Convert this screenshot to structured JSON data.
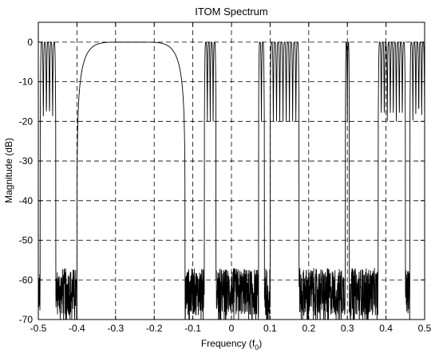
{
  "chart_data": {
    "type": "line",
    "title": "ITOM Spectrum",
    "xlabel_main": "Frequency (f",
    "xlabel_sub": "0",
    "xlabel_close": ")",
    "ylabel": "Magnitude (dB)",
    "xlim": [
      -0.5,
      0.5
    ],
    "ylim": [
      -70,
      5
    ],
    "grid": true,
    "grid_style": "dashed",
    "line_color": "#000000",
    "x_ticks": [
      -0.5,
      -0.4,
      -0.3,
      -0.2,
      -0.1,
      0,
      0.1,
      0.2,
      0.3,
      0.4,
      0.5
    ],
    "x_tick_labels": [
      "-0.5",
      "-0.4",
      "-0.3",
      "-0.2",
      "-0.1",
      "0",
      "0.1",
      "0.2",
      "0.3",
      "0.4",
      "0.5"
    ],
    "y_ticks": [
      0,
      -10,
      -20,
      -30,
      -40,
      -50,
      -60,
      -70
    ],
    "y_tick_labels": [
      "0",
      "-10",
      "-20",
      "-30",
      "-40",
      "-50",
      "-60",
      "-70"
    ],
    "passbands": [
      {
        "start": -0.495,
        "end": -0.455,
        "level_db": 0
      },
      {
        "start": -0.4,
        "end": -0.12,
        "level_db": 0,
        "shape": "smooth"
      },
      {
        "start": -0.07,
        "end": -0.04,
        "level_db": 0
      },
      {
        "start": 0.07,
        "end": 0.085,
        "level_db": 0
      },
      {
        "start": 0.1,
        "end": 0.175,
        "level_db": 0
      },
      {
        "start": 0.295,
        "end": 0.305,
        "level_db": 0
      },
      {
        "start": 0.38,
        "end": 0.45,
        "level_db": 0
      },
      {
        "start": 0.462,
        "end": 0.5,
        "level_db": 0
      }
    ],
    "stopband_floor_db": -60
  }
}
